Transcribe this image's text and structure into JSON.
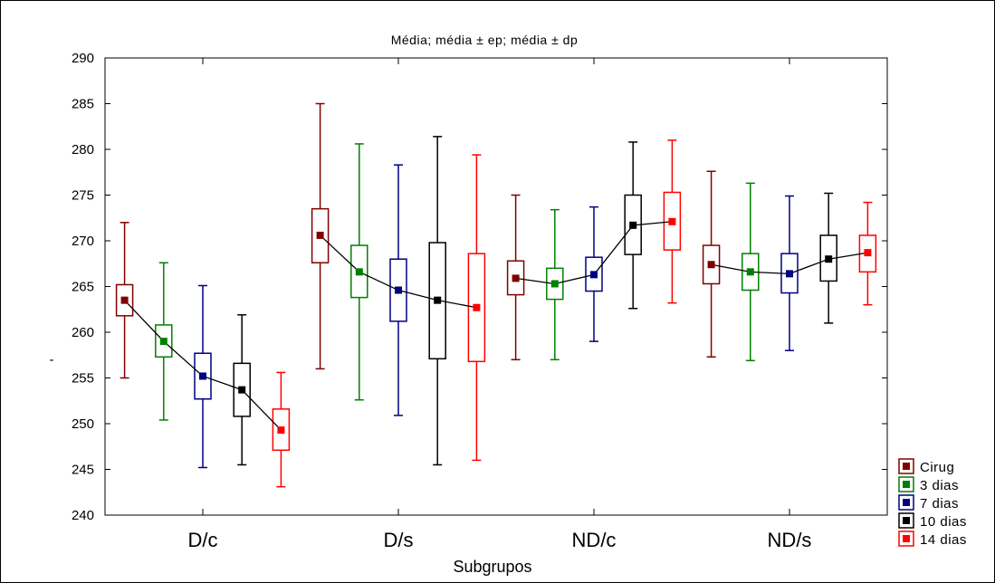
{
  "chart_data": {
    "type": "box",
    "title": "Média; média ± ep; média ± dp",
    "xlabel": "Subgrupos",
    "ylabel": "-",
    "ylim": [
      240,
      290
    ],
    "yticks": [
      "240",
      "245",
      "250",
      "255",
      "260",
      "265",
      "270",
      "275",
      "280",
      "285",
      "290"
    ],
    "categories": [
      "D/c",
      "D/s",
      "ND/c",
      "ND/s"
    ],
    "grid": false,
    "legend_position": "bottom-right",
    "series": [
      {
        "name": "Cirug",
        "color": "#800000",
        "mean": [
          263.5,
          270.6,
          265.9,
          267.4
        ],
        "ep_low": [
          261.8,
          267.6,
          264.1,
          265.3
        ],
        "ep_high": [
          265.2,
          273.5,
          267.8,
          269.5
        ],
        "dp_low": [
          255.0,
          256.0,
          257.0,
          257.3
        ],
        "dp_high": [
          272.0,
          285.0,
          275.0,
          277.6
        ]
      },
      {
        "name": "3 dias",
        "color": "#008000",
        "mean": [
          259.0,
          266.6,
          265.3,
          266.6
        ],
        "ep_low": [
          257.3,
          263.8,
          263.6,
          264.6
        ],
        "ep_high": [
          260.8,
          269.5,
          267.0,
          268.6
        ],
        "dp_low": [
          250.4,
          252.6,
          257.0,
          256.9
        ],
        "dp_high": [
          267.6,
          280.6,
          273.4,
          276.3
        ]
      },
      {
        "name": "7 dias",
        "color": "#000080",
        "mean": [
          255.2,
          264.6,
          266.3,
          266.4
        ],
        "ep_low": [
          252.7,
          261.2,
          264.5,
          264.3
        ],
        "ep_high": [
          257.7,
          268.0,
          268.2,
          268.6
        ],
        "dp_low": [
          245.2,
          250.9,
          259.0,
          258.0
        ],
        "dp_high": [
          265.1,
          278.3,
          273.7,
          274.9
        ]
      },
      {
        "name": "10 dias",
        "color": "#000000",
        "mean": [
          253.7,
          263.5,
          271.7,
          268.0
        ],
        "ep_low": [
          250.8,
          257.1,
          268.5,
          265.6
        ],
        "ep_high": [
          256.6,
          269.8,
          275.0,
          270.6
        ],
        "dp_low": [
          245.5,
          245.5,
          262.6,
          261.0
        ],
        "dp_high": [
          261.9,
          281.4,
          280.8,
          275.2
        ]
      },
      {
        "name": "14 dias",
        "color": "#ff0000",
        "mean": [
          249.3,
          262.7,
          272.1,
          268.7
        ],
        "ep_low": [
          247.1,
          256.8,
          269.0,
          266.6
        ],
        "ep_high": [
          251.6,
          268.6,
          275.3,
          270.6
        ],
        "dp_low": [
          243.1,
          246.0,
          263.2,
          263.0
        ],
        "dp_high": [
          255.6,
          279.4,
          281.0,
          274.2
        ]
      }
    ]
  }
}
